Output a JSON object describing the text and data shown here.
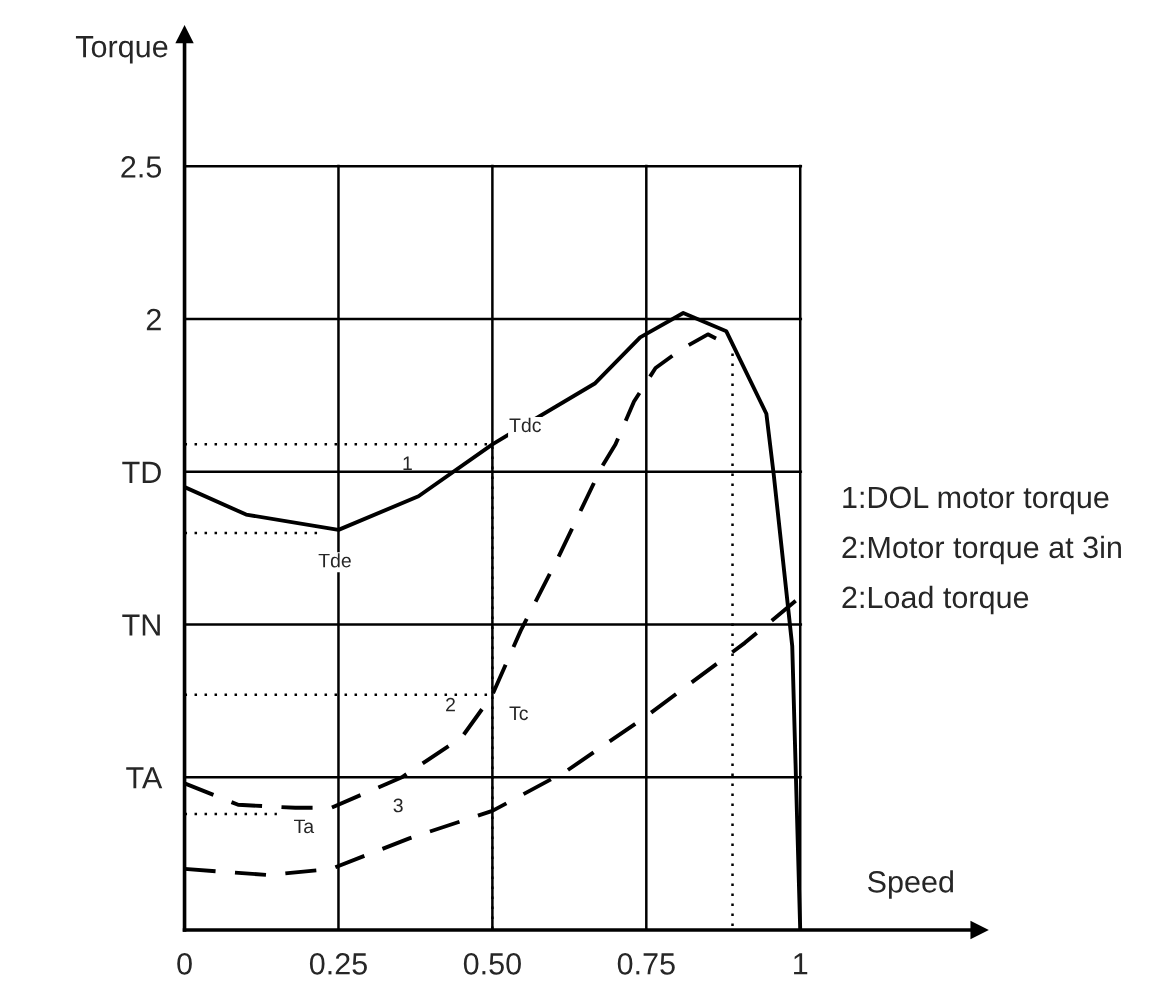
{
  "chart_data": {
    "type": "line",
    "xlabel": "Speed",
    "ylabel": "Torque",
    "xlim": [
      0,
      1.29
    ],
    "ylim": [
      0,
      2.93
    ],
    "xticks": [
      0,
      0.25,
      {
        "value": 0.5,
        "label": "0.50"
      },
      0.75,
      1
    ],
    "yticks": [
      {
        "value": 0.5,
        "label": "TA"
      },
      {
        "value": 1,
        "label": "TN"
      },
      {
        "value": 1.5,
        "label": "TD"
      },
      2,
      2.5
    ],
    "grid": true,
    "legend": false,
    "marker": "none",
    "series": [
      {
        "color": "#000000",
        "line_style": "solid",
        "x": [
          0,
          0.1,
          0.25,
          0.38,
          0.5,
          0.667,
          0.74,
          0.81,
          0.88,
          0.945,
          0.957,
          0.987,
          1.0
        ],
        "values": [
          1.45,
          1.36,
          1.31,
          1.42,
          1.59,
          1.79,
          1.94,
          2.02,
          1.96,
          1.69,
          1.49,
          0.93,
          0
        ]
      },
      {
        "color": "#000000",
        "line_style": "dashed",
        "x": [
          0,
          0.087,
          0.18,
          0.238,
          0.353,
          0.45,
          0.5,
          0.546,
          0.607,
          0.676,
          0.7,
          0.73,
          0.765,
          0.806,
          0.85,
          0.88
        ],
        "values": [
          0.48,
          0.41,
          0.4,
          0.4,
          0.5,
          0.63,
          0.77,
          0.98,
          1.22,
          1.51,
          1.59,
          1.73,
          1.84,
          1.9,
          1.95,
          1.92
        ]
      },
      {
        "color": "#000000",
        "line_style": "dashed",
        "x": [
          0,
          0.135,
          0.238,
          0.365,
          0.5,
          0.62,
          0.75,
          0.91,
          1.0
        ],
        "values": [
          0.2,
          0.18,
          0.2,
          0.3,
          0.39,
          0.52,
          0.7,
          0.94,
          1.09
        ]
      },
      {
        "color": "#000000",
        "line_style": "dotted",
        "x": [
          0,
          0.5,
          0.5
        ],
        "values": [
          1.59,
          1.59,
          0
        ]
      },
      {
        "color": "#000000",
        "line_style": "dotted",
        "x": [
          0,
          0.22
        ],
        "values": [
          1.3,
          1.3
        ]
      },
      {
        "color": "#000000",
        "line_style": "dotted",
        "x": [
          0,
          0.5
        ],
        "values": [
          0.77,
          0.77
        ]
      },
      {
        "color": "#000000",
        "line_style": "dotted",
        "x": [
          0,
          0.15
        ],
        "values": [
          0.38,
          0.38
        ]
      },
      {
        "color": "#000000",
        "line_style": "dotted",
        "x": [
          0.89,
          0.89
        ],
        "values": [
          1.92,
          0
        ]
      }
    ],
    "annotations": [
      {
        "text": "Tdc",
        "x": 0.5,
        "y": 1.59
      },
      {
        "text": "Tde",
        "x": 0.19,
        "y": 1.27
      },
      {
        "text": "Tc",
        "x": 0.5,
        "y": 0.77
      },
      {
        "text": "Ta",
        "x": 0.15,
        "y": 0.4
      },
      {
        "text": "1",
        "x": 0.38,
        "y": 1.42
      },
      {
        "text": "2",
        "x": 0.45,
        "y": 0.63
      },
      {
        "text": "3",
        "x": 0.365,
        "y": 0.3
      },
      "1:DOL motor torque",
      "2:Motor torque at 3in",
      "2:Load torque"
    ]
  }
}
